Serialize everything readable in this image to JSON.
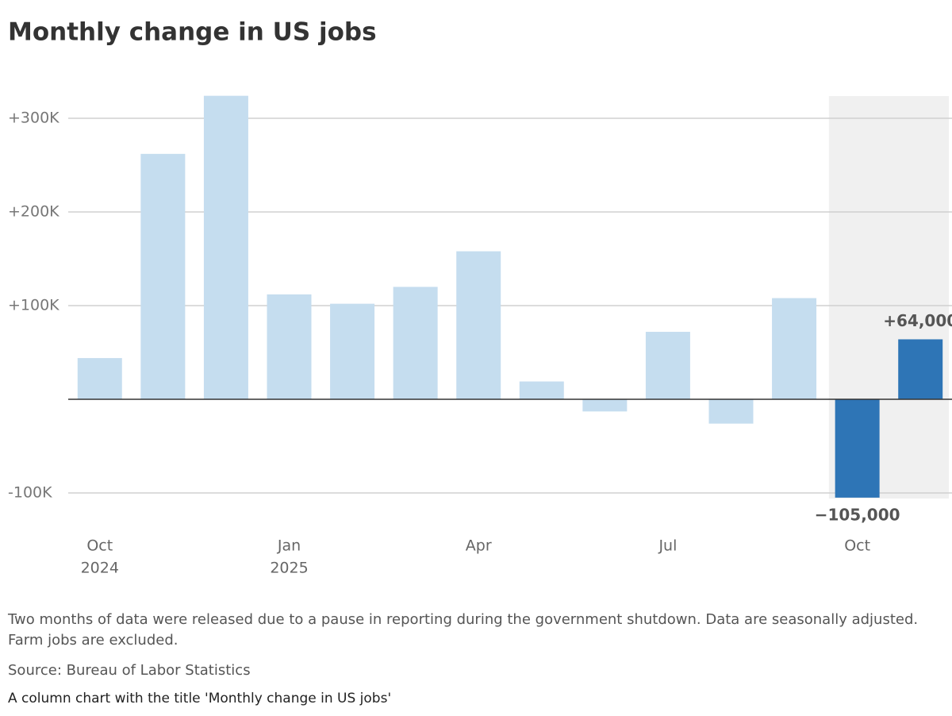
{
  "chart_data": {
    "type": "bar",
    "title": "Monthly change in US jobs",
    "categories": [
      "Oct",
      null,
      null,
      "Jan",
      null,
      null,
      "Apr",
      null,
      null,
      "Jul",
      null,
      null,
      "Oct",
      null
    ],
    "category_sublabels": [
      "2024",
      null,
      null,
      "2025",
      null,
      null,
      null,
      null,
      null,
      null,
      null,
      null,
      null,
      null
    ],
    "values": [
      44000,
      262000,
      324000,
      112000,
      102000,
      120000,
      158000,
      19000,
      -13000,
      72000,
      -26000,
      108000,
      -105000,
      64000
    ],
    "value_labels": [
      null,
      null,
      null,
      null,
      null,
      null,
      null,
      null,
      null,
      null,
      null,
      null,
      "−105,000",
      "+64,000"
    ],
    "colors": [
      "#c5ddef",
      "#c5ddef",
      "#c5ddef",
      "#c5ddef",
      "#c5ddef",
      "#c5ddef",
      "#c5ddef",
      "#c5ddef",
      "#c5ddef",
      "#c5ddef",
      "#c5ddef",
      "#c5ddef",
      "#2e75b6",
      "#2e75b6"
    ],
    "shaded_categories": [
      12,
      13
    ],
    "shade_color": "#f0f0f0",
    "ylim": [
      -110000,
      330000
    ],
    "yticks": [
      {
        "value": -100000,
        "label": "-100K"
      },
      {
        "value": 100000,
        "label": "+100K"
      },
      {
        "value": 200000,
        "label": "+200K"
      },
      {
        "value": 300000,
        "label": "+300K"
      }
    ],
    "grid": true,
    "note": "Two months of data were released due to a pause in reporting during the government shutdown. Data are seasonally adjusted. Farm jobs are excluded.",
    "source": "Source: Bureau of Labor Statistics",
    "description": "A column chart with the title 'Monthly change in US jobs'"
  }
}
